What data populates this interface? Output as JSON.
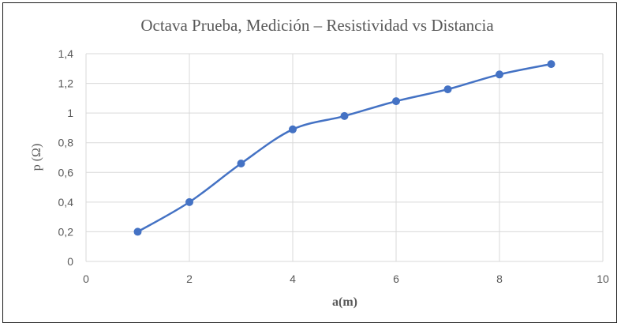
{
  "chart_data": {
    "type": "scatter",
    "title": "Octava Prueba, Medición – Resistividad vs Distancia",
    "xlabel": "a(m)",
    "ylabel": "p (Ω)",
    "xlim": [
      0,
      10
    ],
    "ylim": [
      0,
      1.4
    ],
    "x_ticks": [
      0,
      2,
      4,
      6,
      8,
      10
    ],
    "x_tick_labels": [
      "0",
      "2",
      "4",
      "6",
      "8",
      "10"
    ],
    "y_ticks": [
      0,
      0.2,
      0.4,
      0.6,
      0.8,
      1,
      1.2,
      1.4
    ],
    "y_tick_labels": [
      "0",
      "0,2",
      "0,4",
      "0,6",
      "0,8",
      "1",
      "1,2",
      "1,4"
    ],
    "grid": true,
    "smooth_line": true,
    "series": [
      {
        "color": "#4472c4",
        "x": [
          1,
          2,
          3,
          4,
          5,
          6,
          7,
          8,
          9
        ],
        "y": [
          0.2,
          0.4,
          0.66,
          0.89,
          0.98,
          1.08,
          1.16,
          1.26,
          1.33
        ]
      }
    ]
  }
}
